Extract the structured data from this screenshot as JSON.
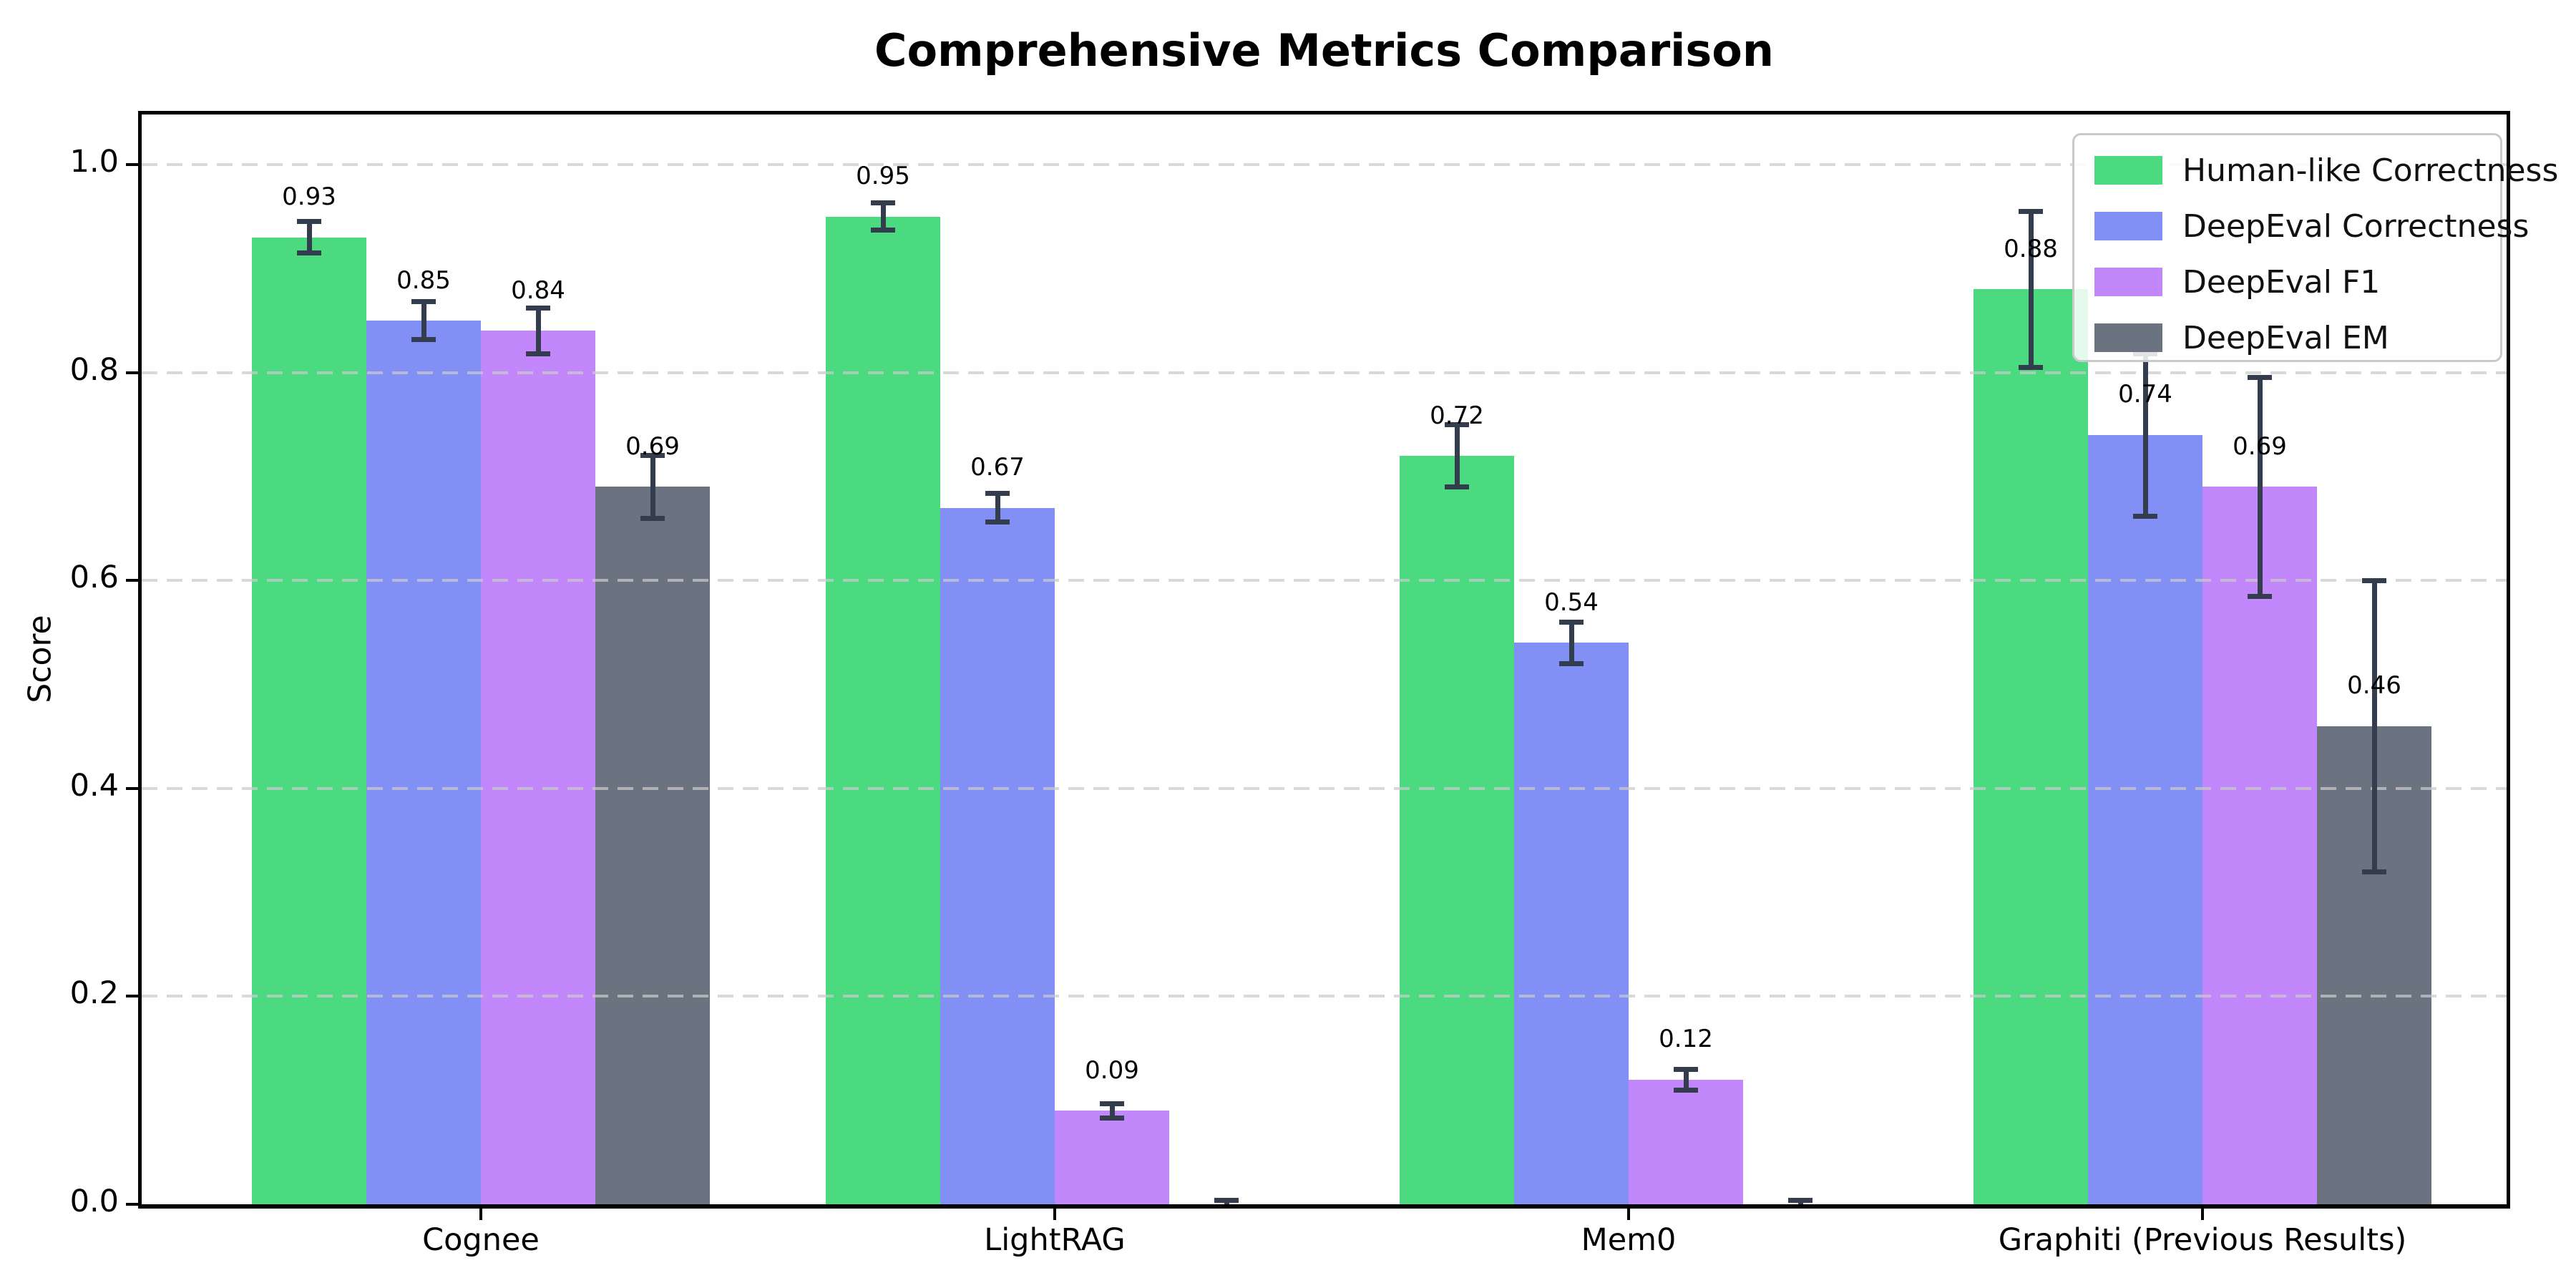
{
  "title": "Comprehensive Metrics Comparison",
  "axes": {
    "ylabel": "Score",
    "yticks": [
      "0.0",
      "0.2",
      "0.4",
      "0.6",
      "0.8",
      "1.0"
    ],
    "ytick_values": [
      0.0,
      0.2,
      0.4,
      0.6,
      0.8,
      1.0
    ]
  },
  "chart_data": {
    "type": "bar",
    "title": "Comprehensive Metrics Comparison",
    "xlabel": "",
    "ylabel": "Score",
    "ylim": [
      0,
      1.048
    ],
    "grid": "horizontal dashed gridlines at 0.2 steps, drawn over bars",
    "legend_position": "upper right",
    "categories": [
      "Cognee",
      "LightRAG",
      "Mem0",
      "Graphiti (Previous Results)"
    ],
    "series": [
      {
        "name": "Human-like Correctness",
        "color": "#4cda81",
        "values": [
          0.93,
          0.95,
          0.72,
          0.88
        ],
        "errors": [
          0.015,
          0.013,
          0.03,
          0.075
        ],
        "labels": [
          "0.93",
          "0.95",
          "0.72",
          "0.88"
        ]
      },
      {
        "name": "DeepEval Correctness",
        "color": "#8290f5",
        "values": [
          0.85,
          0.67,
          0.54,
          0.74
        ],
        "errors": [
          0.018,
          0.014,
          0.02,
          0.078
        ],
        "labels": [
          "0.85",
          "0.67",
          "0.54",
          "0.74"
        ]
      },
      {
        "name": "DeepEval F1",
        "color": "#c287fa",
        "values": [
          0.84,
          0.09,
          0.12,
          0.69
        ],
        "errors": [
          0.022,
          0.007,
          0.01,
          0.105
        ],
        "labels": [
          "0.84",
          "0.09",
          "0.12",
          "0.69"
        ]
      },
      {
        "name": "DeepEval EM",
        "color": "#6b7280",
        "values": [
          0.69,
          0.0,
          0.0,
          0.46
        ],
        "errors": [
          0.03,
          0.004,
          0.004,
          0.14
        ],
        "labels": [
          "0.69",
          "",
          "",
          "0.46"
        ]
      }
    ],
    "error_bar_color": "#333d4d"
  }
}
